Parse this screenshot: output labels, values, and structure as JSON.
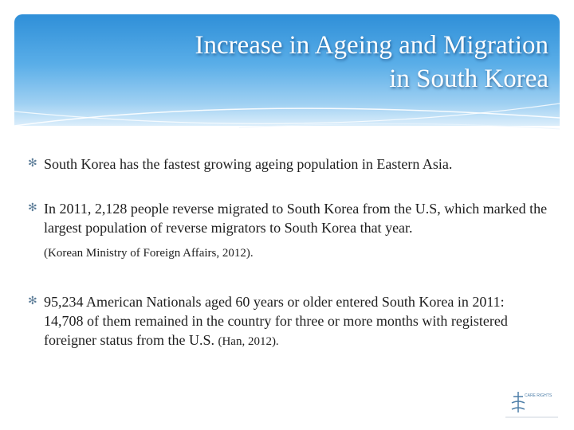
{
  "header": {
    "title_lines": [
      "Increase in Ageing and Migration",
      "in South Korea"
    ]
  },
  "bullets": [
    {
      "text": "South Korea has the fastest growing ageing population in Eastern Asia."
    },
    {
      "text": "In 2011, 2,128 people reverse migrated to South Korea from the U.S, which marked the largest population of reverse migrators to South Korea that year.",
      "citation": "(Korean Ministry of Foreign Affairs, 2012)."
    },
    {
      "text": "95,234 American Nationals aged 60 years or older entered South Korea in 2011: 14,708 of them remained in the country for three or more months with registered foreigner status from the U.S.",
      "citation": "(Han, 2012)."
    }
  ],
  "logo": {
    "text": "CARE RIGHTS"
  }
}
